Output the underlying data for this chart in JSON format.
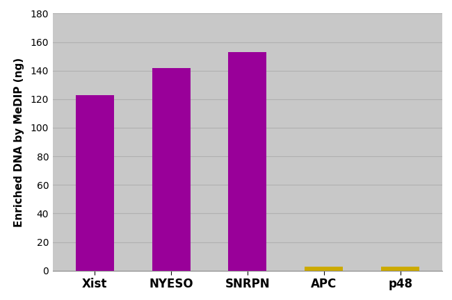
{
  "categories": [
    "Xist",
    "NYESO",
    "SNRPN",
    "APC",
    "p48"
  ],
  "values": [
    123,
    142,
    153,
    3,
    3
  ],
  "bar_colors": [
    "#990099",
    "#990099",
    "#990099",
    "#ccaa00",
    "#ccaa00"
  ],
  "ylabel": "Enriched DNA by MeDIP (ng)",
  "ylim": [
    0,
    180
  ],
  "yticks": [
    0,
    20,
    40,
    60,
    80,
    100,
    120,
    140,
    160,
    180
  ],
  "figure_bg": "#ffffff",
  "plot_bg": "#c8c8c8",
  "bar_width": 0.5,
  "grid_color": "#b0b0b0",
  "tick_fontsize": 10,
  "label_fontsize": 11,
  "xlabel_fontsize": 12
}
